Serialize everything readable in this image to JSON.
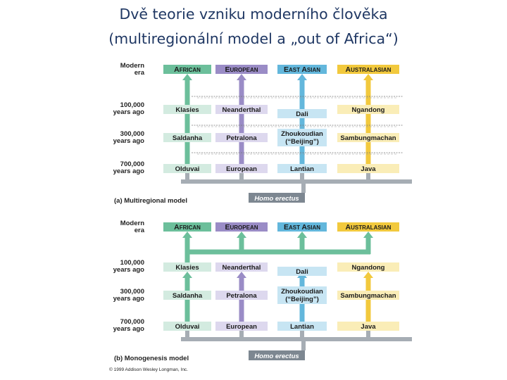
{
  "title": {
    "line1": "Dvě teorie vzniku moderního člověka",
    "line2": "(multiregionální model a „out of Africa“)"
  },
  "colors": {
    "african": "#6cbf9b",
    "african_light": "#d3ebe0",
    "european": "#9a8cc6",
    "european_light": "#ddd8ee",
    "east_asian": "#63b7dc",
    "east_asian_light": "#c7e5f3",
    "australasian": "#f2c93d",
    "australasian_light": "#faedb7",
    "trunk": "#a6adb4",
    "homo_erectus": "#7d8791"
  },
  "panels": [
    {
      "id": "a",
      "era_labels": [
        {
          "line1": "Modern",
          "line2": "era"
        },
        {
          "line1": "100,000",
          "line2": "years ago"
        },
        {
          "line1": "300,000",
          "line2": "years ago"
        },
        {
          "line1": "700,000",
          "line2": "years ago"
        }
      ],
      "headers": [
        "AFRICAN",
        "EUROPEAN",
        "EAST ASIAN",
        "AUSTRALASIAN"
      ],
      "rows": [
        [
          "Klasies",
          "Neanderthal",
          "Dali",
          "Ngandong"
        ],
        [
          "Saldanha",
          "Petralona",
          "Zhoukoudian",
          "Sambungmachan"
        ],
        [
          "Olduvai",
          "European",
          "Lantian",
          "Java"
        ]
      ],
      "zhoukoudian_note": "(“Beijing”)",
      "homo_erectus": "Homo erectus",
      "caption": "(a) Multiregional model"
    },
    {
      "id": "b",
      "era_labels": [
        {
          "line1": "Modern",
          "line2": "era"
        },
        {
          "line1": "100,000",
          "line2": "years ago"
        },
        {
          "line1": "300,000",
          "line2": "years ago"
        },
        {
          "line1": "700,000",
          "line2": "years ago"
        }
      ],
      "headers": [
        "AFRICAN",
        "EUROPEAN",
        "EAST ASIAN",
        "AUSTRALASIAN"
      ],
      "rows": [
        [
          "Klasies",
          "Neanderthal",
          "Dali",
          "Ngandong"
        ],
        [
          "Saldanha",
          "Petralona",
          "Zhoukoudian",
          "Sambungmachan"
        ],
        [
          "Olduvai",
          "European",
          "Lantian",
          "Java"
        ]
      ],
      "zhoukoudian_note": "(“Beijing”)",
      "homo_erectus": "Homo erectus",
      "caption": "(b) Monogenesis model"
    }
  ],
  "copyright": "© 1999 Addison Wesley Longman, Inc."
}
